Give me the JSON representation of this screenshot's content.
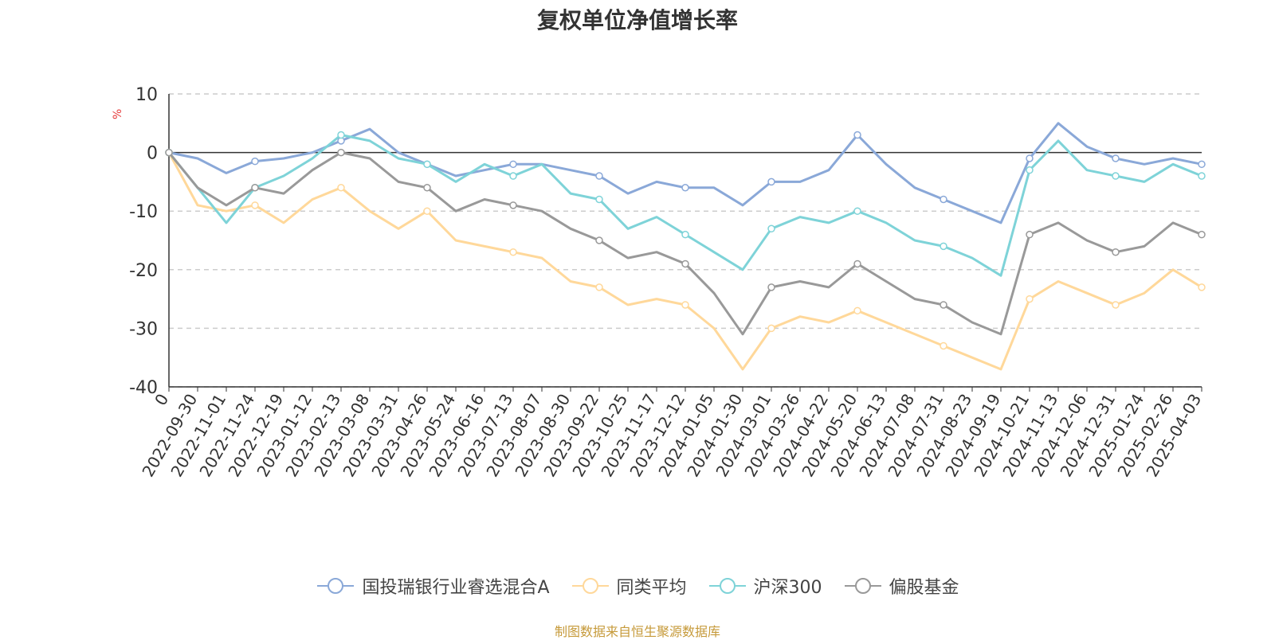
{
  "title": "复权单位净值增长率",
  "source": "制图数据来自恒生聚源数据库",
  "chart_data": {
    "type": "line",
    "title": "复权单位净值增长率",
    "ylabel": "%",
    "ylim": [
      -40,
      10
    ],
    "yticks": [
      10,
      0,
      -10,
      -20,
      -30,
      -40
    ],
    "grid": true,
    "legend_position": "bottom",
    "x_labels": [
      "0",
      "2022-09-30",
      "2022-11-01",
      "2022-11-24",
      "2022-12-19",
      "2023-01-12",
      "2023-02-13",
      "2023-03-08",
      "2023-03-31",
      "2023-04-26",
      "2023-05-24",
      "2023-06-16",
      "2023-07-13",
      "2023-08-07",
      "2023-08-30",
      "2023-09-22",
      "2023-10-25",
      "2023-11-17",
      "2023-12-12",
      "2024-01-05",
      "2024-01-30",
      "2024-03-01",
      "2024-03-26",
      "2024-04-22",
      "2024-05-20",
      "2024-06-13",
      "2024-07-08",
      "2024-07-31",
      "2024-08-23",
      "2024-09-19",
      "2024-10-21",
      "2024-11-13",
      "2024-12-06",
      "2024-12-31",
      "2025-01-24",
      "2025-02-26",
      "2025-04-03"
    ],
    "series": [
      {
        "name": "国投瑞银行业睿选混合A",
        "color": "#8aa8d8",
        "values": [
          0,
          -1,
          -3.5,
          -1.5,
          -1,
          0,
          2,
          4,
          0,
          -2,
          -4,
          -3,
          -2,
          -2,
          -3,
          -4,
          -7,
          -5,
          -6,
          -6,
          -9,
          -5,
          -5,
          -3,
          3,
          -2,
          -6,
          -8,
          -10,
          -12,
          -1,
          5,
          1,
          -1,
          -2,
          -1,
          -2
        ]
      },
      {
        "name": "同类平均",
        "color": "#ffd89a",
        "values": [
          0,
          -9,
          -10,
          -9,
          -12,
          -8,
          -6,
          -10,
          -13,
          -10,
          -15,
          -16,
          -17,
          -18,
          -22,
          -23,
          -26,
          -25,
          -26,
          -30,
          -37,
          -30,
          -28,
          -29,
          -27,
          -29,
          -31,
          -33,
          -35,
          -37,
          -25,
          -22,
          -24,
          -26,
          -24,
          -20,
          -23
        ]
      },
      {
        "name": "沪深300",
        "color": "#7ed3d8",
        "values": [
          0,
          -6,
          -12,
          -6,
          -4,
          -1,
          3,
          2,
          -1,
          -2,
          -5,
          -2,
          -4,
          -2,
          -7,
          -8,
          -13,
          -11,
          -14,
          -17,
          -20,
          -13,
          -11,
          -12,
          -10,
          -12,
          -15,
          -16,
          -18,
          -21,
          -3,
          2,
          -3,
          -4,
          -5,
          -2,
          -4
        ]
      },
      {
        "name": "偏股基金",
        "color": "#999999",
        "values": [
          0,
          -6,
          -9,
          -6,
          -7,
          -3,
          0,
          -1,
          -5,
          -6,
          -10,
          -8,
          -9,
          -10,
          -13,
          -15,
          -18,
          -17,
          -19,
          -24,
          -31,
          -23,
          -22,
          -23,
          -19,
          -22,
          -25,
          -26,
          -29,
          -31,
          -14,
          -12,
          -15,
          -17,
          -16,
          -12,
          -14
        ]
      }
    ]
  }
}
